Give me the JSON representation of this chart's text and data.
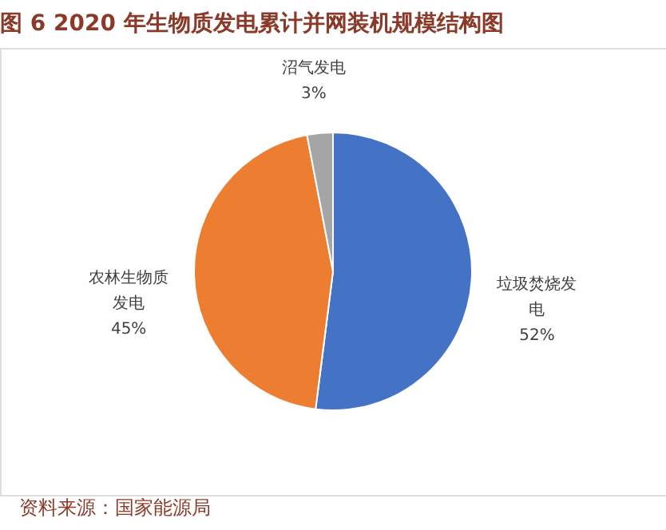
{
  "chart_data": {
    "type": "pie",
    "title": "图 6 2020 年生物质发电累计并网装机规模结构图",
    "categories": [
      "垃圾焚烧发电",
      "农林生物质发电",
      "沼气发电"
    ],
    "values": [
      52,
      45,
      3
    ],
    "colors": [
      "#4472c4",
      "#ed7d31",
      "#a5a5a5"
    ],
    "value_labels": [
      "52%",
      "45%",
      "3%"
    ],
    "annotations": [
      "资料来源：国家能源局"
    ]
  }
}
